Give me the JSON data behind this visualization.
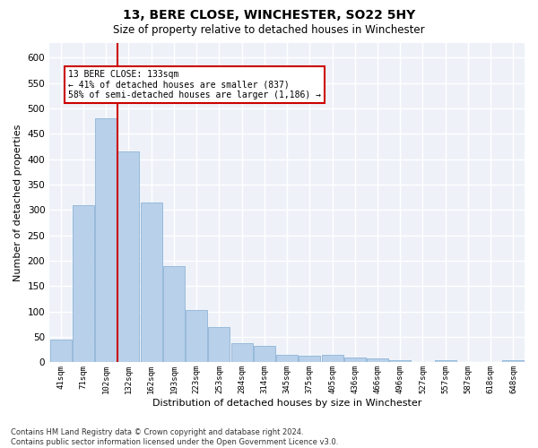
{
  "title": "13, BERE CLOSE, WINCHESTER, SO22 5HY",
  "subtitle": "Size of property relative to detached houses in Winchester",
  "xlabel": "Distribution of detached houses by size in Winchester",
  "ylabel": "Number of detached properties",
  "categories": [
    "41sqm",
    "71sqm",
    "102sqm",
    "132sqm",
    "162sqm",
    "193sqm",
    "223sqm",
    "253sqm",
    "284sqm",
    "314sqm",
    "345sqm",
    "375sqm",
    "405sqm",
    "436sqm",
    "466sqm",
    "496sqm",
    "527sqm",
    "557sqm",
    "587sqm",
    "618sqm",
    "648sqm"
  ],
  "values": [
    45,
    310,
    480,
    415,
    315,
    190,
    103,
    70,
    38,
    32,
    15,
    13,
    15,
    10,
    8,
    5,
    0,
    5,
    0,
    0,
    5
  ],
  "bar_color": "#b8d0ea",
  "bar_edge_color": "#8fb4d8",
  "vline_color": "#cc0000",
  "vline_xindex": 2.5,
  "annotation_text": "13 BERE CLOSE: 133sqm\n← 41% of detached houses are smaller (837)\n58% of semi-detached houses are larger (1,186) →",
  "annotation_box_color": "#ffffff",
  "annotation_box_edge_color": "#cc0000",
  "ylim": [
    0,
    630
  ],
  "yticks": [
    0,
    50,
    100,
    150,
    200,
    250,
    300,
    350,
    400,
    450,
    500,
    550,
    600
  ],
  "background_color": "#eef2f8",
  "title_fontsize": 10,
  "subtitle_fontsize": 8.5,
  "xlabel_fontsize": 8,
  "ylabel_fontsize": 8,
  "footnote": "Contains HM Land Registry data © Crown copyright and database right 2024.\nContains public sector information licensed under the Open Government Licence v3.0.",
  "footnote_fontsize": 6
}
